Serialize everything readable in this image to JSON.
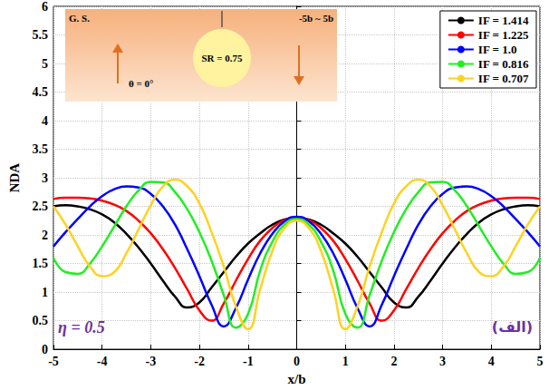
{
  "chart_data": {
    "type": "line",
    "x_label": "x/b",
    "y_label": "NDA",
    "xlim": [
      -5,
      5
    ],
    "xticks": [
      -5,
      -4,
      -3,
      -2,
      -1,
      0,
      1,
      2,
      3,
      4,
      5
    ],
    "ylim": [
      0,
      6
    ],
    "yticks": [
      0,
      0.5,
      1,
      1.5,
      2,
      2.5,
      3,
      3.5,
      4,
      4.5,
      5,
      5.5,
      6
    ],
    "grid": true,
    "legend": "upper right",
    "annotations": [
      "η = 0.5",
      "(الف)"
    ],
    "inset_texts": [
      "G. S.",
      "-5b ~ 5b",
      "θ = 0°",
      "SR = 0.75"
    ],
    "x": [
      -5,
      -4.75,
      -4.5,
      -4.25,
      -4,
      -3.75,
      -3.5,
      -3.25,
      -3,
      -2.75,
      -2.5,
      -2.25,
      -2,
      -1.75,
      -1.5,
      -1.25,
      -1,
      -0.75,
      -0.5,
      -0.25,
      0,
      0.25,
      0.5,
      0.75,
      1,
      1.25,
      1.5,
      1.75,
      2,
      2.25,
      2.5,
      2.75,
      3,
      3.25,
      3.5,
      3.75,
      4,
      4.25,
      4.5,
      4.75,
      5
    ],
    "series": [
      {
        "name": "IF = 1.414",
        "color": "#000000",
        "values": [
          2.5,
          2.52,
          2.5,
          2.45,
          2.36,
          2.22,
          2.02,
          1.78,
          1.5,
          1.2,
          0.92,
          0.73,
          0.82,
          1.08,
          1.35,
          1.62,
          1.85,
          2.03,
          2.18,
          2.27,
          2.3,
          2.27,
          2.18,
          2.03,
          1.85,
          1.62,
          1.35,
          1.08,
          0.82,
          0.73,
          0.92,
          1.2,
          1.5,
          1.78,
          2.02,
          2.22,
          2.36,
          2.45,
          2.5,
          2.52,
          2.5
        ]
      },
      {
        "name": "IF = 1.225",
        "color": "#ff0000",
        "values": [
          2.63,
          2.65,
          2.65,
          2.64,
          2.6,
          2.53,
          2.42,
          2.25,
          2.03,
          1.75,
          1.42,
          1.05,
          0.68,
          0.5,
          0.8,
          1.2,
          1.58,
          1.9,
          2.12,
          2.26,
          2.3,
          2.26,
          2.12,
          1.9,
          1.58,
          1.2,
          0.8,
          0.5,
          0.68,
          1.05,
          1.42,
          1.75,
          2.03,
          2.25,
          2.42,
          2.53,
          2.6,
          2.64,
          2.65,
          2.65,
          2.63
        ]
      },
      {
        "name": "IF = 1.0",
        "color": "#0000ff",
        "values": [
          1.8,
          2.05,
          2.28,
          2.5,
          2.68,
          2.8,
          2.85,
          2.83,
          2.72,
          2.5,
          2.18,
          1.75,
          1.28,
          0.78,
          0.4,
          0.72,
          1.22,
          1.68,
          2.02,
          2.24,
          2.32,
          2.24,
          2.02,
          1.68,
          1.22,
          0.72,
          0.4,
          0.78,
          1.28,
          1.75,
          2.18,
          2.5,
          2.72,
          2.83,
          2.85,
          2.8,
          2.68,
          2.5,
          2.28,
          2.05,
          1.8
        ]
      },
      {
        "name": "IF = 0.816",
        "color": "#22ee22",
        "values": [
          1.6,
          1.35,
          1.32,
          1.5,
          1.8,
          2.15,
          2.5,
          2.78,
          2.93,
          2.92,
          2.75,
          2.45,
          2.05,
          1.55,
          0.95,
          0.38,
          0.62,
          1.38,
          1.88,
          2.18,
          2.28,
          2.18,
          1.88,
          1.38,
          0.62,
          0.38,
          0.95,
          1.55,
          2.05,
          2.45,
          2.75,
          2.92,
          2.93,
          2.78,
          2.5,
          2.15,
          1.8,
          1.5,
          1.32,
          1.35,
          1.6
        ]
      },
      {
        "name": "IF = 0.707",
        "color": "#ffd21f",
        "values": [
          2.5,
          2.18,
          1.8,
          1.45,
          1.28,
          1.35,
          1.68,
          2.1,
          2.52,
          2.85,
          2.97,
          2.85,
          2.55,
          2.05,
          1.45,
          0.75,
          0.35,
          1.05,
          1.72,
          2.12,
          2.25,
          2.12,
          1.72,
          1.05,
          0.35,
          0.75,
          1.45,
          2.05,
          2.55,
          2.85,
          2.97,
          2.85,
          2.52,
          2.1,
          1.68,
          1.35,
          1.28,
          1.45,
          1.8,
          2.18,
          2.5
        ]
      }
    ]
  }
}
